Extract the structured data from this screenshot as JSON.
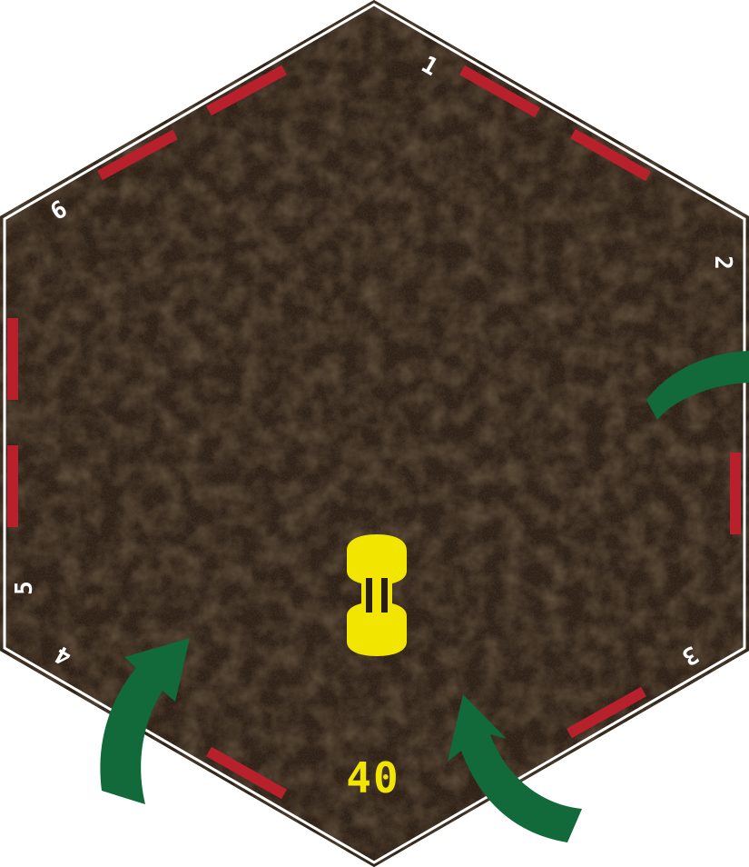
{
  "tile": {
    "number": "40",
    "side_labels": [
      "1",
      "2",
      "3",
      "4",
      "5",
      "6"
    ]
  },
  "colors": {
    "ground": "#2e2117",
    "ground_light": "#3d2c1c",
    "ground_dark": "#1c130c",
    "outer_border": "#1a1410",
    "edge_line": "#ffffff",
    "wall": "#b8202c",
    "arrow": "#12693a",
    "car": "#f2e600",
    "car_detail": "#2a1e12",
    "number": "#f2e600",
    "side_label": "#ffffff"
  },
  "icons": {
    "car": "race-car-icon",
    "arrow": "curved-arrow-icon"
  }
}
